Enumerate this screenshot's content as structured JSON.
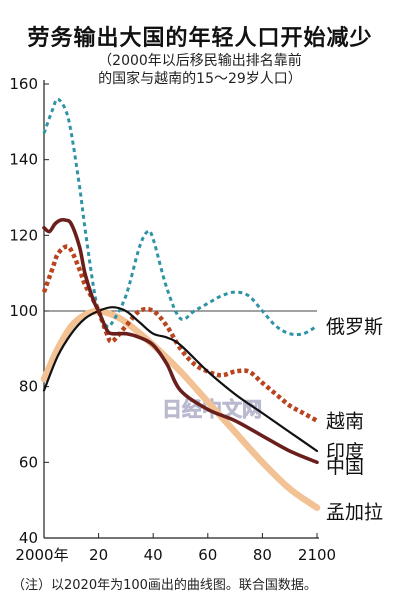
{
  "title": "劳务输出大国的年轻人口开始减少",
  "subtitle_line1": "（2000年以后移民输出排名靠前",
  "subtitle_line2": "的国家与越南的15～29岁人口）",
  "note": "（注）以2020年为100画出的曲线图。联合国数据。",
  "watermark": "日经中文网",
  "chart_data": {
    "type": "line",
    "title": "劳务输出大国的年轻人口开始减少",
    "subtitle": "（2000年以后移民输出排名靠前的国家与越南的15～29岁人口）",
    "xlabel": "",
    "ylabel": "",
    "xlim": [
      2000,
      2100
    ],
    "ylim": [
      40,
      160
    ],
    "x_tick_labels": [
      "2000年",
      "20",
      "40",
      "60",
      "80",
      "2100"
    ],
    "x_tick_values": [
      2000,
      2020,
      2040,
      2060,
      2080,
      2100
    ],
    "y_ticks": [
      40,
      60,
      80,
      100,
      120,
      140,
      160
    ],
    "reference_line": 100,
    "series": [
      {
        "name": "俄罗斯",
        "color": "#2f93a6",
        "style": "dotted",
        "x": [
          2000,
          2003,
          2005,
          2008,
          2010,
          2013,
          2015,
          2018,
          2020,
          2023,
          2025,
          2030,
          2035,
          2038,
          2040,
          2045,
          2050,
          2055,
          2060,
          2065,
          2070,
          2075,
          2080,
          2085,
          2090,
          2095,
          2100
        ],
        "y": [
          147,
          153,
          156,
          153,
          147,
          133,
          122,
          107,
          100,
          96,
          97,
          104,
          117,
          121,
          119,
          106,
          98,
          100,
          102,
          104,
          105,
          104,
          100,
          96,
          94,
          94,
          96
        ]
      },
      {
        "name": "越南",
        "color": "#b94420",
        "style": "dotted",
        "x": [
          2000,
          2003,
          2005,
          2008,
          2010,
          2013,
          2015,
          2018,
          2020,
          2023,
          2025,
          2030,
          2035,
          2040,
          2045,
          2050,
          2055,
          2060,
          2065,
          2070,
          2075,
          2080,
          2085,
          2090,
          2095,
          2100
        ],
        "y": [
          105,
          111,
          115,
          117,
          116,
          111,
          107,
          103,
          100,
          94,
          92,
          96,
          100,
          100,
          96,
          90,
          86,
          84,
          83,
          84,
          84,
          81,
          78,
          75,
          73,
          71
        ]
      },
      {
        "name": "印度",
        "color": "#111111",
        "style": "solid",
        "x": [
          2000,
          2005,
          2010,
          2015,
          2020,
          2025,
          2030,
          2035,
          2040,
          2045,
          2050,
          2060,
          2070,
          2080,
          2090,
          2100
        ],
        "y": [
          79,
          88,
          94,
          98,
          100,
          101,
          100,
          97,
          94,
          93,
          91,
          84,
          78,
          73,
          68,
          63
        ]
      },
      {
        "name": "中国",
        "color": "#6b1f1c",
        "style": "solid",
        "x": [
          2000,
          2002,
          2004,
          2006,
          2008,
          2010,
          2013,
          2015,
          2018,
          2020,
          2023,
          2025,
          2030,
          2035,
          2040,
          2045,
          2050,
          2060,
          2070,
          2080,
          2090,
          2100
        ],
        "y": [
          122,
          121,
          123,
          124,
          124,
          123,
          117,
          110,
          103,
          100,
          95,
          94,
          94,
          93,
          91,
          86,
          79,
          74,
          71,
          67,
          63,
          60
        ]
      },
      {
        "name": "孟加拉",
        "color": "#f2c295",
        "style": "solid",
        "x": [
          2000,
          2005,
          2010,
          2015,
          2020,
          2025,
          2030,
          2040,
          2050,
          2060,
          2070,
          2080,
          2090,
          2100
        ],
        "y": [
          82,
          90,
          96,
          99,
          100,
          99,
          97,
          91,
          84,
          76,
          68,
          60,
          53,
          48
        ]
      }
    ]
  }
}
